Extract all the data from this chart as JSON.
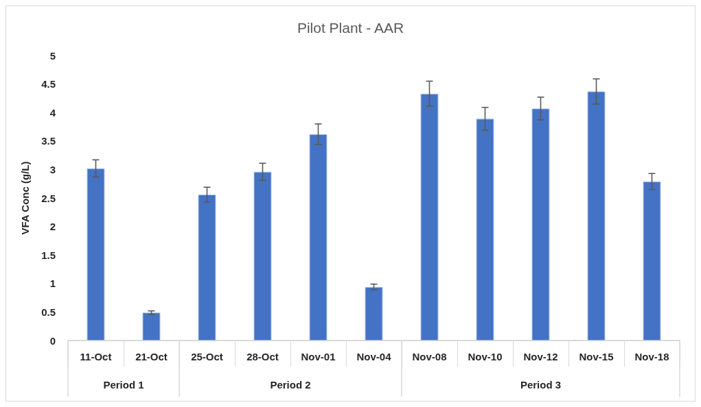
{
  "chart_data": {
    "type": "bar",
    "title": "Pilot Plant - AAR",
    "ylabel": "VFA Conc (g/L)",
    "categories": [
      "11-Oct",
      "21-Oct",
      "25-Oct",
      "28-Oct",
      "Nov-01",
      "Nov-04",
      "Nov-08",
      "Nov-10",
      "Nov-12",
      "Nov-15",
      "Nov-18"
    ],
    "values": [
      3.02,
      0.49,
      2.56,
      2.96,
      3.62,
      0.94,
      4.33,
      3.89,
      4.07,
      4.37,
      2.79
    ],
    "errors": [
      0.15,
      0.03,
      0.13,
      0.15,
      0.18,
      0.05,
      0.22,
      0.2,
      0.2,
      0.22,
      0.14
    ],
    "color": "#4472c4",
    "ylim": [
      0,
      5
    ],
    "yticks": [
      0,
      0.5,
      1,
      1.5,
      2,
      2.5,
      3,
      3.5,
      4,
      4.5,
      5
    ],
    "annotations": [
      "Period 1",
      "Period 2",
      "Period 3"
    ],
    "grid": false
  }
}
